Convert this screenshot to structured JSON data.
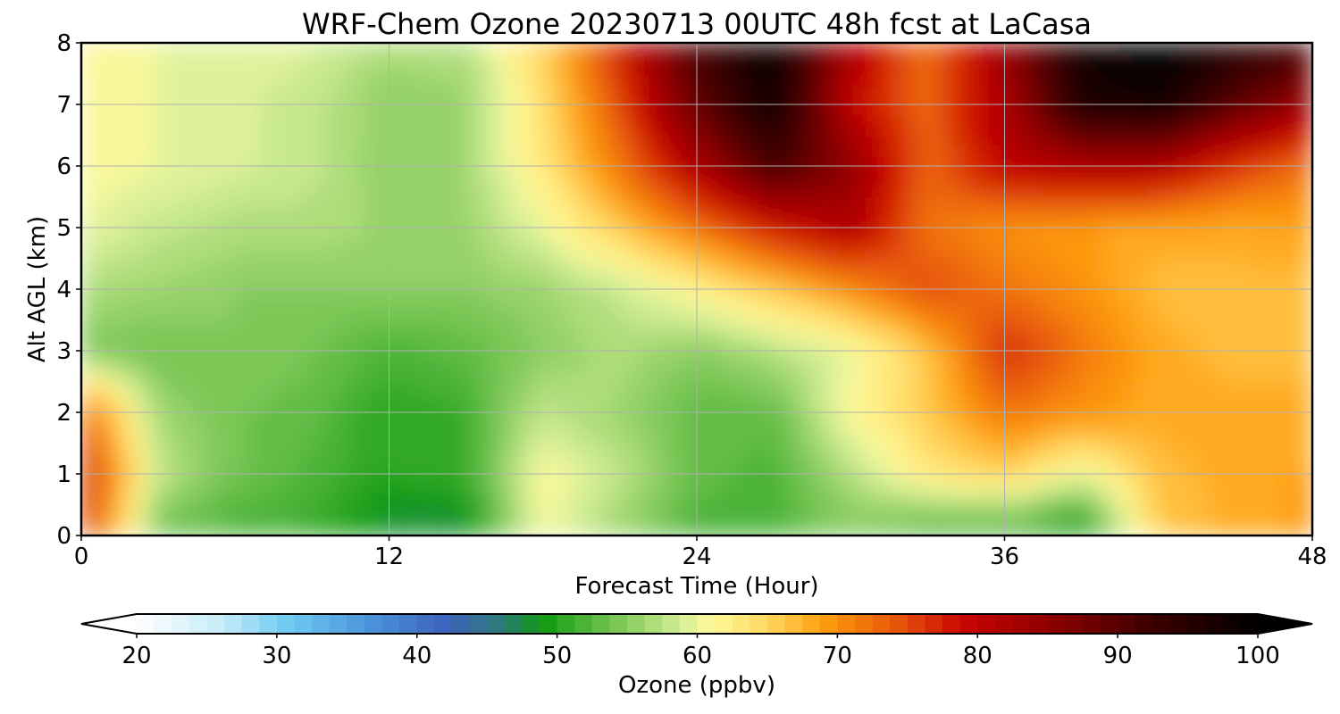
{
  "chart_data": {
    "type": "heatmap",
    "title": "WRF-Chem Ozone  20230713 00UTC 48h fcst at LaCasa",
    "xlabel": "Forecast Time (Hour)",
    "ylabel": "Alt AGL (km)",
    "xlim": [
      0,
      48
    ],
    "ylim": [
      0,
      8
    ],
    "x_ticks": [
      0,
      12,
      24,
      36,
      48
    ],
    "y_ticks": [
      0,
      1,
      2,
      3,
      4,
      5,
      6,
      7,
      8
    ],
    "grid": true,
    "x": [
      0,
      3,
      6,
      9,
      12,
      15,
      18,
      21,
      24,
      27,
      30,
      33,
      36,
      39,
      42,
      45,
      48
    ],
    "y": [
      0.2,
      1,
      2,
      3,
      4,
      5,
      6,
      7,
      8
    ],
    "z": [
      [
        78,
        54,
        52,
        51,
        48,
        48,
        61,
        56,
        52,
        52,
        55,
        53,
        53,
        49,
        66,
        68,
        69
      ],
      [
        79,
        58,
        54,
        52,
        50,
        51,
        61,
        58,
        53,
        52,
        57,
        63,
        65,
        60,
        67,
        68,
        69
      ],
      [
        74,
        56,
        54,
        53,
        50,
        51,
        58,
        56,
        53,
        53,
        61,
        66,
        72,
        70,
        68,
        68,
        68
      ],
      [
        54,
        54,
        55,
        54,
        52,
        53,
        55,
        57,
        55,
        57,
        60,
        66,
        77,
        72,
        68,
        67,
        67
      ],
      [
        57,
        56,
        55,
        55,
        55,
        55,
        56,
        58,
        62,
        66,
        70,
        75,
        72,
        70,
        67,
        67,
        67
      ],
      [
        60,
        58,
        57,
        57,
        56,
        56,
        60,
        66,
        72,
        78,
        82,
        72,
        70,
        69,
        68,
        68,
        69
      ],
      [
        61,
        60,
        59,
        58,
        55,
        56,
        63,
        72,
        82,
        92,
        85,
        73,
        80,
        82,
        82,
        76,
        72
      ],
      [
        60,
        60,
        59,
        58,
        55,
        56,
        64,
        75,
        89,
        98,
        80,
        73,
        82,
        96,
        98,
        90,
        83
      ],
      [
        62,
        60,
        60,
        59,
        57,
        57,
        65,
        78,
        92,
        99,
        82,
        72,
        84,
        98,
        100,
        96,
        92
      ]
    ],
    "colorbar": {
      "label": "Ozone  (ppbv)",
      "min": 20,
      "max": 100,
      "ticks": [
        20,
        30,
        40,
        50,
        60,
        70,
        80,
        90,
        100
      ],
      "extend": "both",
      "levels": 64,
      "colormap": [
        [
          20,
          "#ffffff"
        ],
        [
          26,
          "#c6ecf8"
        ],
        [
          31,
          "#6cc8f2"
        ],
        [
          37,
          "#4a90d8"
        ],
        [
          42,
          "#3d63bd"
        ],
        [
          46,
          "#2e7a7a"
        ],
        [
          49,
          "#0f9a0f"
        ],
        [
          51,
          "#3aac2c"
        ],
        [
          55,
          "#88cc5e"
        ],
        [
          59,
          "#d8f09a"
        ],
        [
          61,
          "#fffa9a"
        ],
        [
          65,
          "#ffd860"
        ],
        [
          69,
          "#ff9e10"
        ],
        [
          74,
          "#e85a08"
        ],
        [
          79,
          "#c80404"
        ],
        [
          85,
          "#900000"
        ],
        [
          92,
          "#400000"
        ],
        [
          100,
          "#000000"
        ]
      ]
    }
  }
}
